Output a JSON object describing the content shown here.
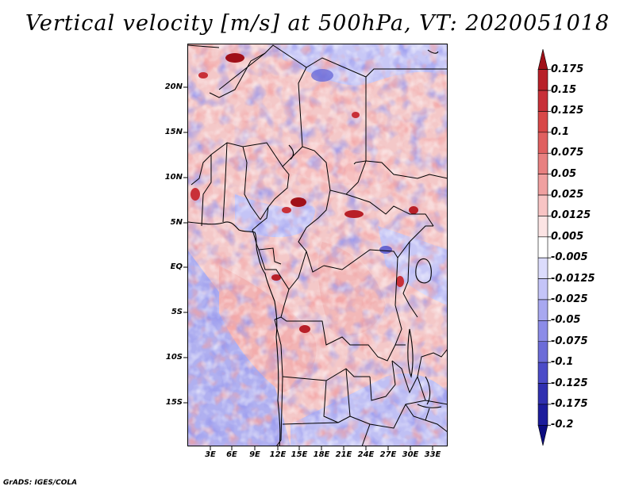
{
  "title": "Vertical velocity [m/s] at 500hPa, VT: 2020051018",
  "credit": "GrADS: IGES/COLA",
  "map": {
    "lat_labels": [
      "20N",
      "15N",
      "10N",
      "5N",
      "EQ",
      "5S",
      "10S",
      "15S"
    ],
    "lon_labels": [
      "3E",
      "6E",
      "9E",
      "12E",
      "15E",
      "18E",
      "21E",
      "24E",
      "27E",
      "30E",
      "33E"
    ]
  },
  "colorbar": {
    "labels": [
      "0.175",
      "0.15",
      "0.125",
      "0.1",
      "0.075",
      "0.05",
      "0.025",
      "0.0125",
      "0.005",
      "-0.005",
      "-0.0125",
      "-0.025",
      "-0.05",
      "-0.075",
      "-0.1",
      "-0.125",
      "-0.175",
      "-0.2"
    ],
    "colors": [
      "#a01018",
      "#b82028",
      "#c83038",
      "#d84848",
      "#e06060",
      "#e88080",
      "#f0a0a0",
      "#f8c4c4",
      "#fce4e4",
      "#ffffff",
      "#dcdcfc",
      "#c4c4f8",
      "#a8a8f0",
      "#8c8ce8",
      "#6c6cd8",
      "#4c4cc8",
      "#3030b0",
      "#1c1c9c",
      "#0c0c80"
    ]
  }
}
